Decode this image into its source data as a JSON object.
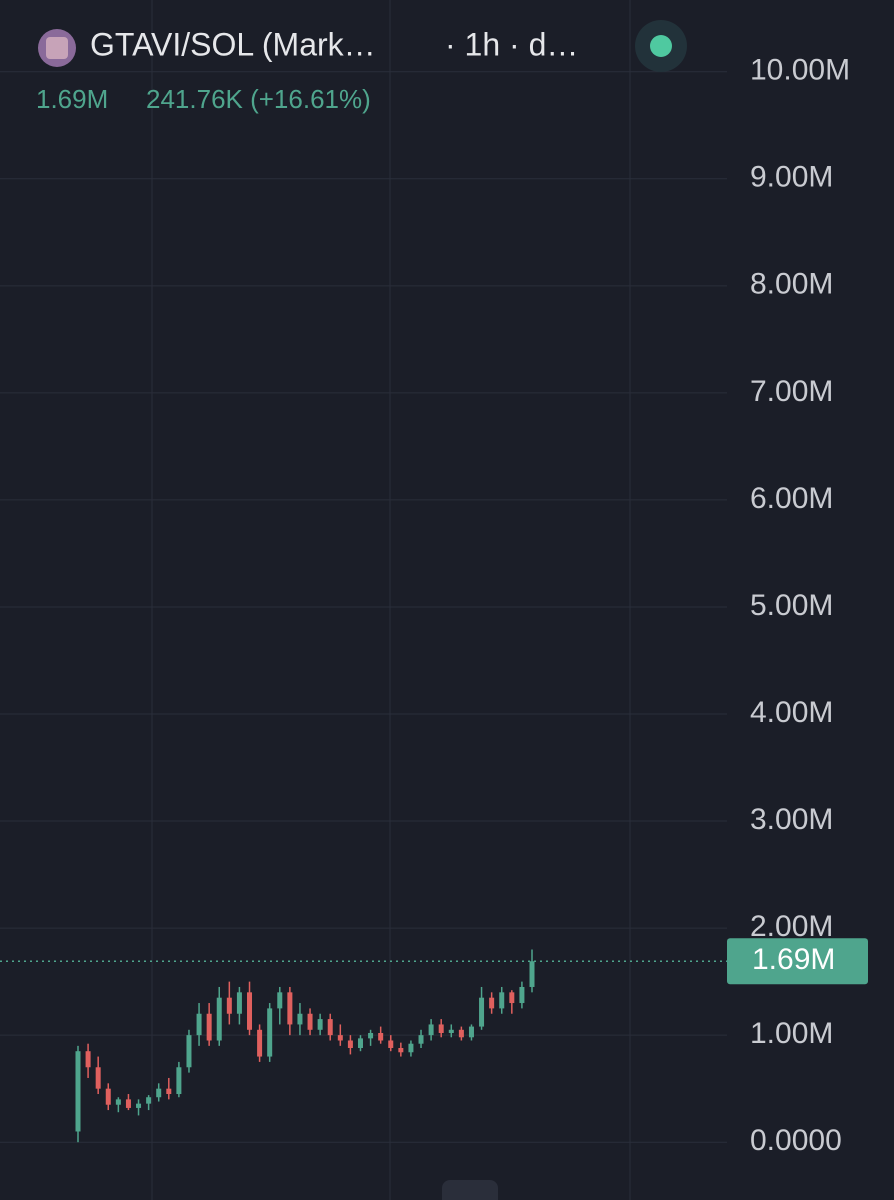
{
  "chart_data": {
    "type": "candlestick",
    "title": "GTAVI/SOL (Mark…",
    "interval": "· 1h · d…",
    "last_price": {
      "value": 1.69,
      "label": "1.69M"
    },
    "change": "241.76K (+16.61%)",
    "up_color": "#4fa58d",
    "down_color": "#e0605e",
    "grid": true,
    "ylim": [
      -0.54,
      10.67
    ],
    "yticks": [
      {
        "value": 10,
        "label": "10.00M"
      },
      {
        "value": 9,
        "label": "9.00M"
      },
      {
        "value": 8,
        "label": "8.00M"
      },
      {
        "value": 7,
        "label": "7.00M"
      },
      {
        "value": 6,
        "label": "6.00M"
      },
      {
        "value": 5,
        "label": "5.00M"
      },
      {
        "value": 4,
        "label": "4.00M"
      },
      {
        "value": 3,
        "label": "3.00M"
      },
      {
        "value": 2,
        "label": "2.00M"
      },
      {
        "value": 1,
        "label": "1.00M"
      },
      {
        "value": 0,
        "label": "0.0000"
      }
    ],
    "candles": [
      [
        0.1,
        0.9,
        0.0,
        0.85
      ],
      [
        0.85,
        0.92,
        0.6,
        0.7
      ],
      [
        0.7,
        0.8,
        0.45,
        0.5
      ],
      [
        0.5,
        0.55,
        0.3,
        0.35
      ],
      [
        0.35,
        0.42,
        0.28,
        0.4
      ],
      [
        0.4,
        0.45,
        0.3,
        0.32
      ],
      [
        0.32,
        0.4,
        0.25,
        0.36
      ],
      [
        0.36,
        0.44,
        0.3,
        0.42
      ],
      [
        0.42,
        0.55,
        0.38,
        0.5
      ],
      [
        0.5,
        0.6,
        0.4,
        0.45
      ],
      [
        0.45,
        0.75,
        0.42,
        0.7
      ],
      [
        0.7,
        1.05,
        0.65,
        1.0
      ],
      [
        1.0,
        1.3,
        0.9,
        1.2
      ],
      [
        1.2,
        1.3,
        0.9,
        0.95
      ],
      [
        0.95,
        1.45,
        0.9,
        1.35
      ],
      [
        1.35,
        1.5,
        1.1,
        1.2
      ],
      [
        1.2,
        1.45,
        1.1,
        1.4
      ],
      [
        1.4,
        1.5,
        1.0,
        1.05
      ],
      [
        1.05,
        1.1,
        0.75,
        0.8
      ],
      [
        0.8,
        1.3,
        0.75,
        1.25
      ],
      [
        1.25,
        1.45,
        1.1,
        1.4
      ],
      [
        1.4,
        1.45,
        1.0,
        1.1
      ],
      [
        1.1,
        1.3,
        1.0,
        1.2
      ],
      [
        1.2,
        1.25,
        1.0,
        1.05
      ],
      [
        1.05,
        1.2,
        1.0,
        1.15
      ],
      [
        1.15,
        1.2,
        0.95,
        1.0
      ],
      [
        1.0,
        1.1,
        0.9,
        0.95
      ],
      [
        0.95,
        1.0,
        0.82,
        0.88
      ],
      [
        0.88,
        1.0,
        0.85,
        0.97
      ],
      [
        0.97,
        1.05,
        0.9,
        1.02
      ],
      [
        1.02,
        1.08,
        0.92,
        0.95
      ],
      [
        0.95,
        1.0,
        0.85,
        0.88
      ],
      [
        0.88,
        0.93,
        0.8,
        0.84
      ],
      [
        0.84,
        0.95,
        0.8,
        0.92
      ],
      [
        0.92,
        1.05,
        0.88,
        1.0
      ],
      [
        1.0,
        1.15,
        0.95,
        1.1
      ],
      [
        1.1,
        1.15,
        0.98,
        1.02
      ],
      [
        1.02,
        1.1,
        0.98,
        1.05
      ],
      [
        1.05,
        1.08,
        0.95,
        0.98
      ],
      [
        0.98,
        1.1,
        0.95,
        1.08
      ],
      [
        1.08,
        1.45,
        1.05,
        1.35
      ],
      [
        1.35,
        1.4,
        1.2,
        1.25
      ],
      [
        1.25,
        1.45,
        1.2,
        1.4
      ],
      [
        1.4,
        1.42,
        1.2,
        1.3
      ],
      [
        1.3,
        1.5,
        1.25,
        1.45
      ],
      [
        1.45,
        1.8,
        1.4,
        1.69
      ]
    ]
  }
}
